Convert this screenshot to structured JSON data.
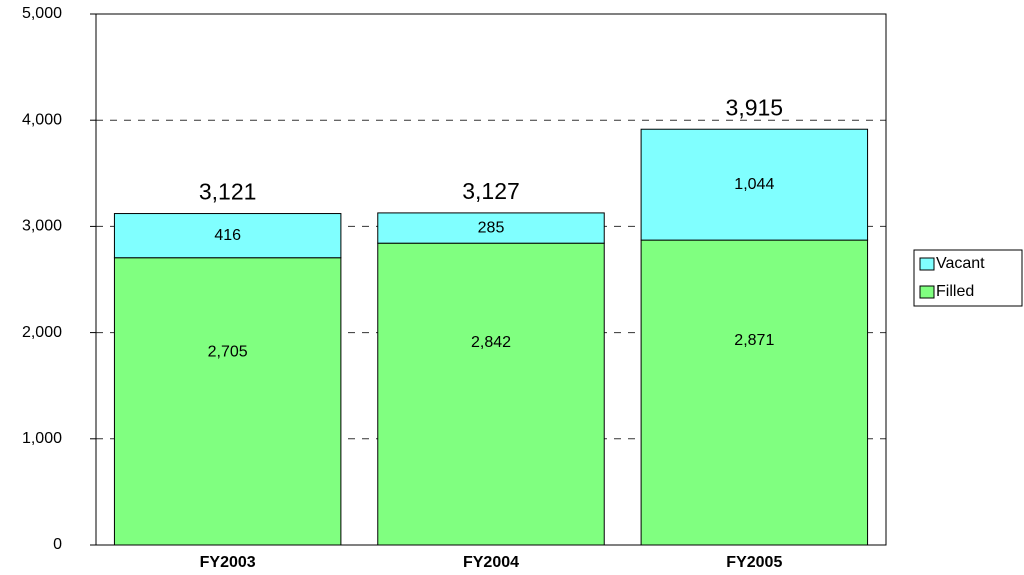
{
  "chart_data": {
    "type": "stacked-bar",
    "categories": [
      "FY2003",
      "FY2004",
      "FY2005"
    ],
    "series": [
      {
        "name": "Filled",
        "color": "#80ff80",
        "values": [
          2705,
          2842,
          2871
        ],
        "value_labels": [
          "2,705",
          "2,842",
          "2,871"
        ]
      },
      {
        "name": "Vacant",
        "color": "#80ffff",
        "values": [
          416,
          285,
          1044
        ],
        "value_labels": [
          "416",
          "285",
          "1,044"
        ]
      }
    ],
    "totals": {
      "values": [
        3121,
        3127,
        3915
      ],
      "value_labels": [
        "3,121",
        "3,127",
        "3,915"
      ]
    },
    "ylim": [
      0,
      5000
    ],
    "yticks": [
      0,
      {
        "value": 1000,
        "label": "1,000"
      },
      {
        "value": 2000,
        "label": "2,000"
      },
      {
        "value": 3000,
        "label": "3,000"
      },
      {
        "value": 4000,
        "label": "4,000"
      },
      {
        "value": 5000,
        "label": "5,000"
      }
    ],
    "grid": true,
    "legend": "right"
  }
}
